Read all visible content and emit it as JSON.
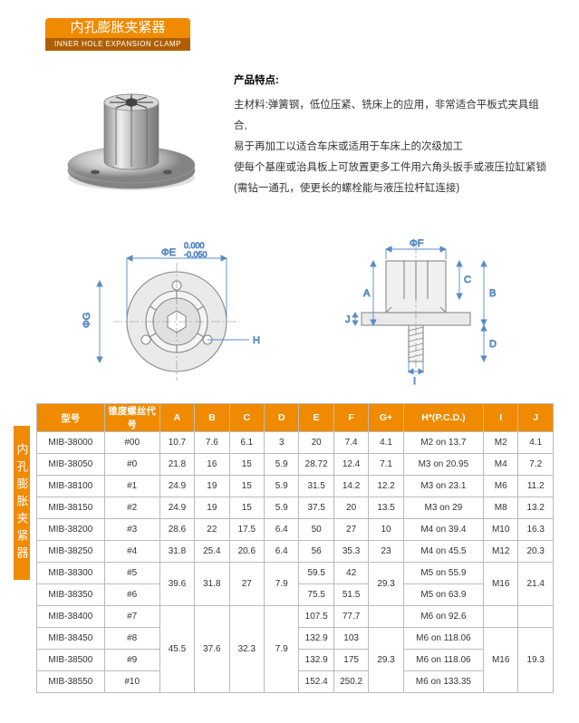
{
  "header": {
    "title": "内孔膨胀夹紧器",
    "subtitle": "INNER HOLE EXPANSION CLAMP"
  },
  "sideTab": "内孔膨胀夹紧器",
  "desc": {
    "title": "产品特点:",
    "line1": "主材料:弹簧钢，低位压紧、铣床上的应用，非常适合平板式夹具组合,",
    "line2": "易于再加工以适合车床或适用于车床上的次级加工",
    "line3": "使每个基座或治具板上可放置更多工件用六角头扳手或液压拉缸紧锁",
    "line4": "(需钻一通孔，使更长的螺栓能与液压拉杆缸连接)"
  },
  "diagLabels": {
    "phiE": "ΦE",
    "tolPlus": "0.000",
    "tolMinus": "-0.050",
    "phiG": "ΦG",
    "H": "H",
    "phiF": "ΦF",
    "A": "A",
    "B": "B",
    "C": "C",
    "D": "D",
    "I": "I",
    "J": "J"
  },
  "table": {
    "headers": [
      "型号",
      "锥度螺丝代号",
      "A",
      "B",
      "C",
      "D",
      "E",
      "F",
      "G+",
      "H*(P.C.D.)",
      "I",
      "J"
    ],
    "rows": [
      [
        "MIB-38000",
        "#00",
        "10.7",
        "7.6",
        "6.1",
        "3",
        "20",
        "7.4",
        "4.1",
        "M2 on 13.7",
        "M2",
        "4.1"
      ],
      [
        "MIB-38050",
        "#0",
        "21.8",
        "16",
        "15",
        "5.9",
        "28.72",
        "12.4",
        "7.1",
        "M3 on 20.95",
        "M4",
        "7.2"
      ],
      [
        "MIB-38100",
        "#1",
        "24.9",
        "19",
        "15",
        "5.9",
        "31.5",
        "14.2",
        "12.2",
        "M3 on 23.1",
        "M6",
        "11.2"
      ],
      [
        "MIB-38150",
        "#2",
        "24.9",
        "19",
        "15",
        "5.9",
        "37.5",
        "20",
        "13.5",
        "M3 on 29",
        "M8",
        "13.2"
      ],
      [
        "MIB-38200",
        "#3",
        "28.6",
        "22",
        "17.5",
        "6.4",
        "50",
        "27",
        "10",
        "M4 on 39.4",
        "M10",
        "16.3"
      ],
      [
        "MIB-38250",
        "#4",
        "31.8",
        "25.4",
        "20.6",
        "6.4",
        "56",
        "35.3",
        "23",
        "M4 on 45.5",
        "M12",
        "20.3"
      ]
    ],
    "merged1": {
      "abcd": [
        "39.6",
        "31.8",
        "27",
        "7.9"
      ],
      "rows": [
        [
          "MIB-38300",
          "#5",
          "59.5",
          "42",
          "M5 on 55.9"
        ],
        [
          "MIB-38350",
          "#6",
          "75.5",
          "51.5",
          "M5 on 63.9"
        ]
      ],
      "g": "29.3",
      "i": "M16",
      "j": "21.4"
    },
    "merged2": {
      "abcd": [
        "45.5",
        "37.6",
        "32.3",
        "7.9"
      ],
      "rows": [
        [
          "MIB-38400",
          "#7",
          "107.5",
          "77.7",
          "M6 on 92.6"
        ],
        [
          "MIB-38450",
          "#8",
          "132.9",
          "103",
          "M6 on 118.06"
        ],
        [
          "MIB-38500",
          "#9",
          "132.9",
          "175",
          "M6 on 118.06"
        ],
        [
          "MIB-38550",
          "#10",
          "152.4",
          "250.2",
          "M6 on 133.35"
        ]
      ],
      "g": "29.3",
      "i": "M16",
      "j": "19.3"
    }
  },
  "colors": {
    "brand": "#f08a00",
    "brandDark": "#b05f00",
    "border": "#bbbbbb",
    "text": "#333333",
    "diagStroke": "#888888",
    "diagFill": "#d8d8d8",
    "dimBlue": "#5a8bc4"
  }
}
